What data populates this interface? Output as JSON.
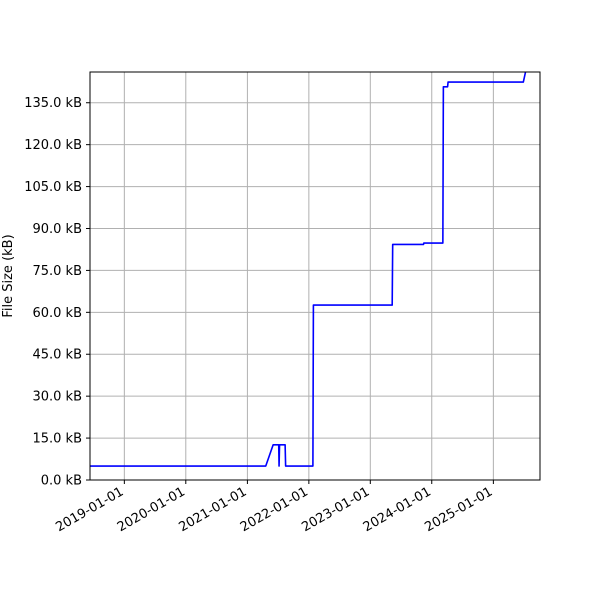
{
  "chart_data": {
    "type": "line",
    "title": "",
    "xlabel": "",
    "ylabel": "File Size (kB)",
    "grid": true,
    "x_ticks": [
      "2019-01-01",
      "2020-01-01",
      "2021-01-01",
      "2022-01-01",
      "2023-01-01",
      "2024-01-01",
      "2025-01-01"
    ],
    "y_ticks": [
      {
        "value": 0,
        "label": "0.0 kB"
      },
      {
        "value": 15,
        "label": "15.0 kB"
      },
      {
        "value": 30,
        "label": "30.0 kB"
      },
      {
        "value": 45,
        "label": "45.0 kB"
      },
      {
        "value": 60,
        "label": "60.0 kB"
      },
      {
        "value": 75,
        "label": "75.0 kB"
      },
      {
        "value": 90,
        "label": "90.0 kB"
      },
      {
        "value": 105,
        "label": "105.0 kB"
      },
      {
        "value": 120,
        "label": "120.0 kB"
      },
      {
        "value": 135,
        "label": "135.0 kB"
      }
    ],
    "xlim": [
      "2018-06-11",
      "2025-10-05"
    ],
    "ylim": [
      0,
      146
    ],
    "series": [
      {
        "color": "#0000ff",
        "points": [
          [
            "2018-06-11",
            5.0
          ],
          [
            "2021-04-20",
            5.0
          ],
          [
            "2021-06-03",
            12.6
          ],
          [
            "2021-07-06",
            12.6
          ],
          [
            "2021-07-08",
            5.0
          ],
          [
            "2021-07-11",
            12.6
          ],
          [
            "2021-08-13",
            12.6
          ],
          [
            "2021-08-16",
            5.0
          ],
          [
            "2022-01-25",
            5.0
          ],
          [
            "2022-01-28",
            62.6
          ],
          [
            "2023-05-11",
            62.6
          ],
          [
            "2023-05-14",
            84.3
          ],
          [
            "2023-11-13",
            84.3
          ],
          [
            "2023-11-15",
            84.8
          ],
          [
            "2024-03-07",
            84.8
          ],
          [
            "2024-03-10",
            140.7
          ],
          [
            "2024-04-04",
            140.7
          ],
          [
            "2024-04-07",
            142.4
          ],
          [
            "2025-06-28",
            142.4
          ],
          [
            "2025-07-11",
            146.0
          ]
        ]
      }
    ]
  }
}
